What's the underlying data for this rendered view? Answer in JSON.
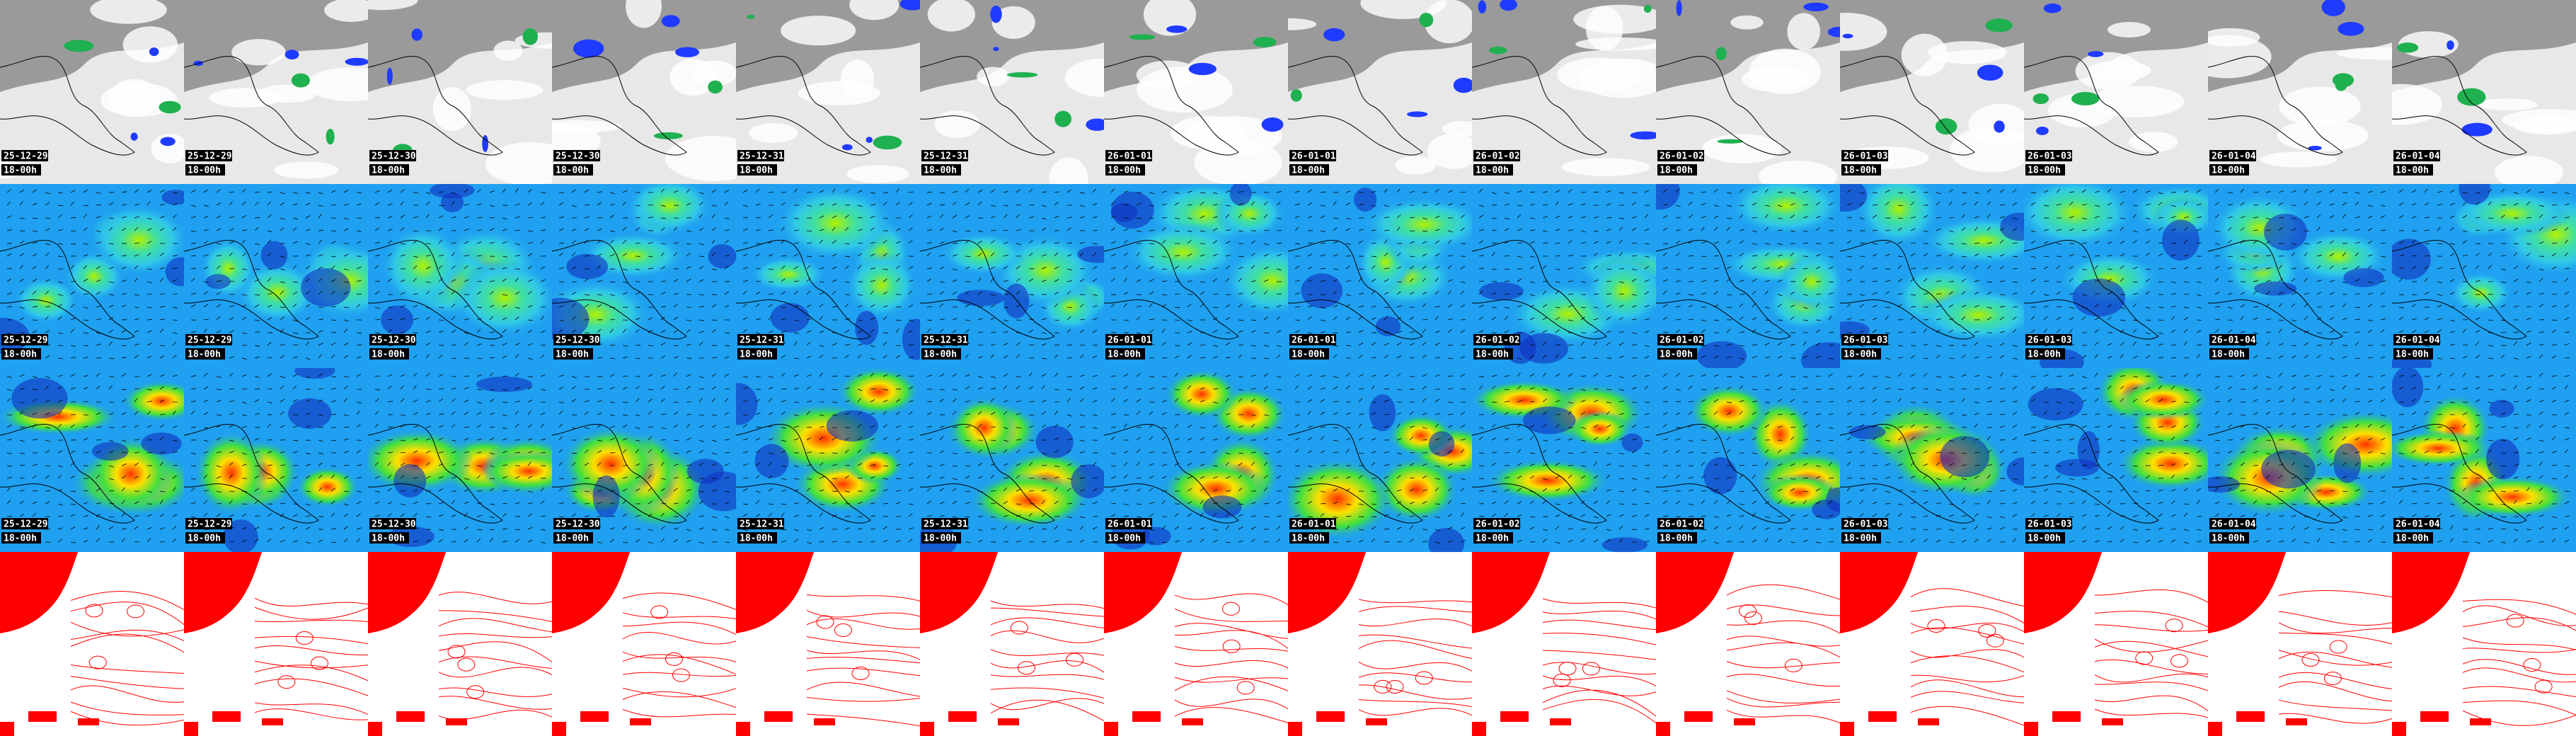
{
  "dates": [
    "25-12-29",
    "25-12-29",
    "25-12-30",
    "25-12-30",
    "25-12-31",
    "25-12-31",
    "26-01-01",
    "26-01-01",
    "26-01-02",
    "26-01-02",
    "26-01-03",
    "26-01-03",
    "26-01-04",
    "26-01-04"
  ],
  "times": [
    "18-00h",
    "18-00h",
    "18-00h",
    "18-00h",
    "18-00h",
    "18-00h",
    "18-00h",
    "18-00h",
    "18-00h",
    "18-00h",
    "18-00h",
    "18-00h",
    "18-00h",
    "18-00h"
  ]
}
